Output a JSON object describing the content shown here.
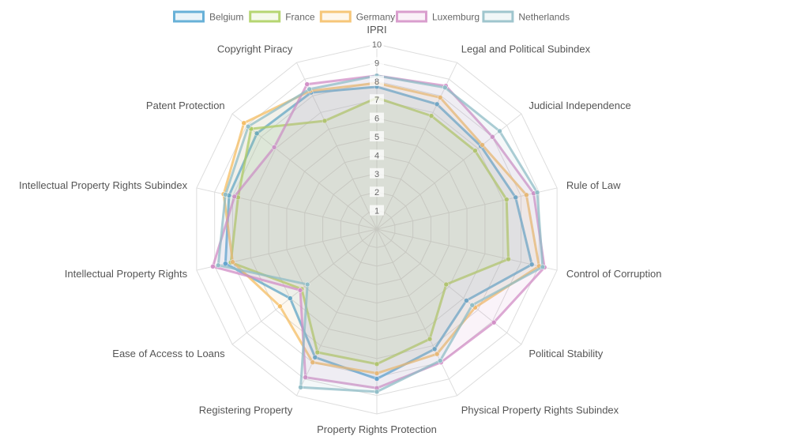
{
  "chart_data": {
    "type": "radar",
    "categories": [
      "IPRI",
      "Legal and Political Subindex",
      "Judicial Independence",
      "Rule of Law",
      "Control of Corruption",
      "Political Stability",
      "Physical Property Rights Subindex",
      "Property Rights Protection",
      "Registering Property",
      "Ease of Access to Loans",
      "Intellectual Property Rights",
      "Intellectual Property Rights Subindex",
      "Patent Protection",
      "Copyright Piracy"
    ],
    "rlim": [
      0,
      10
    ],
    "ticks": [
      "1",
      "2",
      "3",
      "4",
      "5",
      "6",
      "7",
      "8",
      "9",
      "10"
    ],
    "grid": true,
    "legend_position": "top",
    "series": [
      {
        "name": "Belgium",
        "color": "#4fa3d1",
        "values": [
          7.7,
          7.5,
          7.2,
          7.7,
          8.6,
          6.2,
          7.2,
          8.1,
          7.7,
          6.0,
          8.4,
          8.2,
          8.3,
          8.2
        ]
      },
      {
        "name": "France",
        "color": "#a9cf5a",
        "values": [
          7.1,
          6.8,
          6.8,
          7.2,
          7.3,
          4.8,
          6.6,
          7.3,
          7.4,
          5.2,
          8.1,
          7.7,
          8.7,
          6.5
        ]
      },
      {
        "name": "Germany",
        "color": "#f4bd63",
        "values": [
          7.9,
          7.9,
          7.3,
          8.3,
          9.0,
          6.8,
          7.5,
          7.8,
          8.0,
          6.7,
          8.0,
          8.5,
          9.2,
          8.3
        ]
      },
      {
        "name": "Luxemburg",
        "color": "#d28ec6",
        "values": [
          8.3,
          8.6,
          8.0,
          8.7,
          9.3,
          8.1,
          8.0,
          8.6,
          8.9,
          5.3,
          9.1,
          7.9,
          7.1,
          8.7
        ]
      },
      {
        "name": "Netherlands",
        "color": "#8fbcc6",
        "values": [
          8.3,
          8.5,
          8.5,
          8.9,
          9.2,
          6.6,
          7.9,
          8.8,
          9.5,
          4.8,
          8.8,
          8.4,
          8.9,
          8.4
        ]
      }
    ]
  }
}
